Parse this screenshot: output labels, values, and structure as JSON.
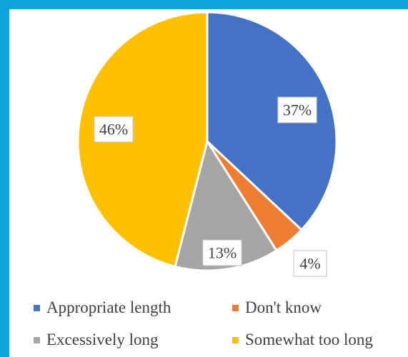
{
  "chart_data": {
    "type": "pie",
    "categories": [
      "Appropriate length",
      "Don't know",
      "Excessively long",
      "Somewhat too long"
    ],
    "values": [
      37,
      4,
      13,
      46
    ],
    "labels": [
      "37%",
      "4%",
      "13%",
      "46%"
    ],
    "colors": [
      "#4472c4",
      "#ed7d31",
      "#a5a5a5",
      "#ffc000"
    ],
    "legend_position": "bottom",
    "title": ""
  }
}
